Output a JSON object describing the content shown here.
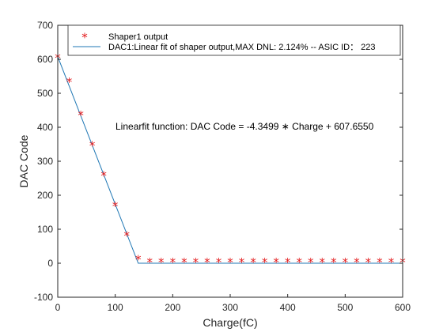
{
  "chart_data": {
    "type": "scatter",
    "xlabel": "Charge(fC)",
    "ylabel": "DAC Code",
    "xlim": [
      0,
      600
    ],
    "ylim": [
      -100,
      700
    ],
    "xticks": [
      0,
      100,
      200,
      300,
      400,
      500,
      600
    ],
    "yticks": [
      -100,
      0,
      100,
      200,
      300,
      400,
      500,
      600,
      700
    ],
    "grid": false,
    "legend_position": "top-right",
    "series": [
      {
        "name": "Shaper1 output",
        "marker": "asterisk",
        "color": "#e31a1c",
        "x": [
          0,
          20,
          40,
          60,
          80,
          100,
          120,
          140,
          160,
          180,
          200,
          220,
          240,
          260,
          280,
          300,
          320,
          340,
          360,
          380,
          400,
          420,
          440,
          460,
          480,
          500,
          520,
          540,
          560,
          580,
          600
        ],
        "y": [
          603,
          532,
          435,
          345,
          257,
          168,
          80,
          10,
          2,
          2,
          2,
          2,
          2,
          2,
          2,
          2,
          2,
          2,
          2,
          2,
          2,
          2,
          2,
          2,
          2,
          2,
          2,
          2,
          2,
          2,
          2
        ]
      },
      {
        "name": "DAC1:Linear fit of shaper output,MAX DNL: 2.124% -- ASIC ID： 223",
        "marker": "line",
        "color": "#1f77b4",
        "x": [
          0,
          140,
          600
        ],
        "y": [
          607.655,
          0,
          0
        ]
      }
    ],
    "annotations": [
      {
        "text": "Linearfit function: DAC Code = -4.3499 ∗ Charge + 607.6550",
        "x": 100,
        "y": 400
      }
    ]
  }
}
